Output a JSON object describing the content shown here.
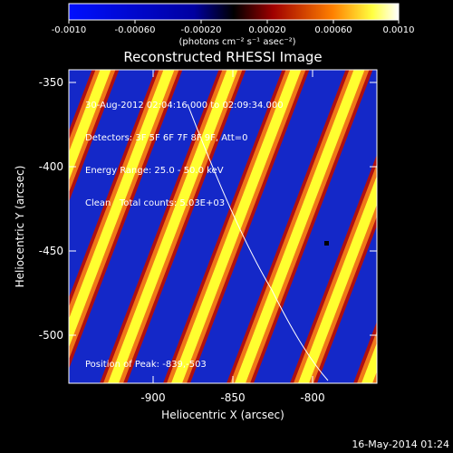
{
  "colorbar": {
    "ticks": [
      "-0.0010",
      "-0.00060",
      "-0.00020",
      "0.00020",
      "0.00060",
      "0.0010"
    ],
    "units": "(photons cm⁻² s⁻¹ asec⁻²)"
  },
  "title": "Reconstructed RHESSI Image",
  "annotations": [
    "30-Aug-2012 02:04:16.000 to 02:09:34.000",
    "Detectors: 3F 5F 6F 7F 8F 9F, Att=0",
    "Energy Range: 25.0 - 50.0 keV",
    "Clean   Total counts: 5.03E+03"
  ],
  "peak_text": "Position of Peak: -839,-503",
  "x_axis": {
    "label": "Heliocentric X (arcsec)",
    "ticks": [
      "-900",
      "-850",
      "-800"
    ]
  },
  "y_axis": {
    "label": "Heliocentric Y (arcsec)",
    "ticks": [
      "-350",
      "-400",
      "-450",
      "-500"
    ]
  },
  "footer_date": "16-May-2014 01:24",
  "colors": {
    "blue": "#1428c8",
    "red": "#b01010",
    "orange": "#f07818",
    "yellow": "#ffff30",
    "white": "#ffffff"
  }
}
